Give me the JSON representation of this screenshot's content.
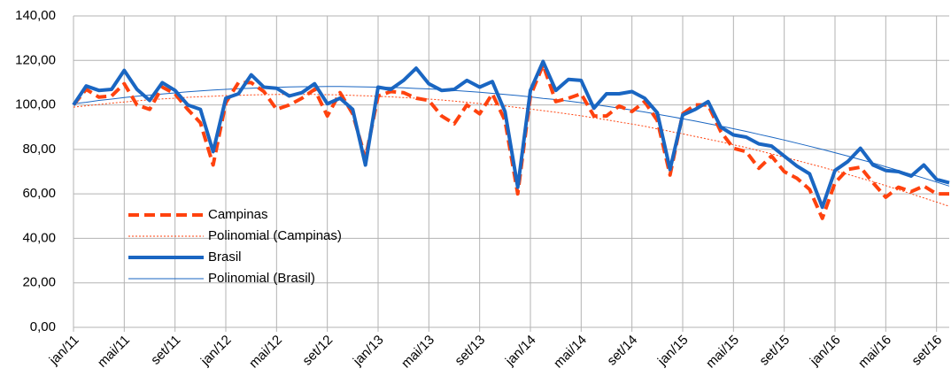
{
  "chart_data": {
    "type": "line",
    "categories": [
      "jan/11",
      null,
      null,
      null,
      "mai/11",
      null,
      null,
      null,
      "set/11",
      null,
      null,
      null,
      "jan/12",
      null,
      null,
      null,
      "mai/12",
      null,
      null,
      null,
      "set/12",
      null,
      null,
      null,
      "jan/13",
      null,
      null,
      null,
      "mai/13",
      null,
      null,
      null,
      "set/13",
      null,
      null,
      null,
      "jan/14",
      null,
      null,
      null,
      "mai/14",
      null,
      null,
      null,
      "set/14",
      null,
      null,
      null,
      "jan/15",
      null,
      null,
      null,
      "mai/15",
      null,
      null,
      null,
      "set/15",
      null,
      null,
      null,
      "jan/16",
      null,
      null,
      null,
      "mai/16",
      null,
      null,
      null,
      "set/16",
      null
    ],
    "series": [
      {
        "name": "Campinas",
        "color": "#ff420e",
        "style": "dashed",
        "width": 4,
        "values": [
          100,
          107,
          103.5,
          104,
          109.5,
          100,
          98,
          108,
          105,
          98,
          92,
          73,
          101,
          110,
          110,
          106,
          98,
          100,
          103,
          107,
          95,
          105.5,
          96,
          76,
          104,
          106,
          105.5,
          103,
          102,
          95,
          91.5,
          100,
          96,
          105,
          93,
          60,
          104,
          118,
          101.5,
          103,
          105,
          95,
          95,
          99.5,
          97,
          101.5,
          93,
          68.5,
          96,
          100,
          100,
          88,
          80.5,
          79,
          71.5,
          77,
          70,
          67,
          62,
          49,
          65,
          71,
          72,
          65,
          58.5,
          63,
          61,
          63.5,
          60,
          60
        ]
      },
      {
        "name": "Polinomial (Campinas)",
        "color": "#ff420e",
        "style": "dotted",
        "width": 1,
        "values": [
          99.0,
          99.6,
          100.2,
          100.8,
          101.3,
          101.8,
          102.3,
          102.7,
          103.0,
          103.4,
          103.7,
          103.9,
          104.2,
          104.3,
          104.5,
          104.6,
          104.7,
          104.7,
          104.7,
          104.7,
          104.6,
          104.5,
          104.3,
          104.1,
          103.9,
          103.6,
          103.3,
          103.0,
          102.6,
          102.2,
          101.7,
          101.2,
          100.6,
          100.1,
          99.5,
          98.8,
          98.1,
          97.4,
          96.7,
          95.9,
          95.1,
          94.2,
          93.3,
          92.3,
          91.4,
          90.4,
          89.2,
          88.1,
          87.0,
          85.8,
          84.6,
          83.4,
          82.1,
          80.8,
          79.4,
          78.0,
          76.5,
          75.0,
          73.5,
          72.0,
          70.4,
          68.8,
          67.1,
          65.5,
          63.7,
          61.9,
          60.0,
          58.2,
          56.3,
          54.4
        ]
      },
      {
        "name": "Brasil",
        "color": "#1a66c2",
        "style": "solid",
        "width": 4,
        "values": [
          100,
          108.5,
          106.5,
          107,
          115.5,
          107,
          102,
          110,
          106.5,
          100,
          98,
          79,
          103,
          105,
          113.5,
          108,
          107.5,
          104,
          105.5,
          109.5,
          100.5,
          103,
          98,
          73,
          108,
          107,
          111,
          116.5,
          109.5,
          106.5,
          107,
          111,
          108,
          110.5,
          97,
          63,
          106.5,
          119.5,
          106.5,
          111.5,
          111,
          98.5,
          105,
          105,
          106,
          103,
          96.5,
          71,
          95.5,
          98,
          101.5,
          90,
          86.5,
          85.5,
          82.5,
          81.5,
          77,
          72.5,
          69,
          54,
          70.5,
          74.5,
          80.5,
          73,
          70.5,
          70,
          68,
          73,
          66.5,
          65
        ]
      },
      {
        "name": "Polinomial (Brasil)",
        "color": "#1a66c2",
        "style": "solid",
        "width": 1,
        "values": [
          100.5,
          101.2,
          102.0,
          102.6,
          103.3,
          103.9,
          104.4,
          104.9,
          105.4,
          105.9,
          106.3,
          106.7,
          107.0,
          107.3,
          107.5,
          107.8,
          107.9,
          108.1,
          108.2,
          108.2,
          108.3,
          108.3,
          108.2,
          108.1,
          108.0,
          107.9,
          107.7,
          107.4,
          107.2,
          106.9,
          106.5,
          106.1,
          105.7,
          105.2,
          104.7,
          104.2,
          103.6,
          102.9,
          102.4,
          101.7,
          101.0,
          100.2,
          99.4,
          98.5,
          97.7,
          96.8,
          95.8,
          94.8,
          93.8,
          92.7,
          91.6,
          90.5,
          89.3,
          88.1,
          86.8,
          85.5,
          84.2,
          82.8,
          81.4,
          80.0,
          78.5,
          77.0,
          75.4,
          73.9,
          72.2,
          70.5,
          68.8,
          67.1,
          65.3,
          63.5
        ]
      }
    ],
    "ylim": [
      0,
      140
    ],
    "yticks": [
      {
        "value": 0,
        "label": "0,00"
      },
      {
        "value": 20,
        "label": "20,00"
      },
      {
        "value": 40,
        "label": "40,00"
      },
      {
        "value": 60,
        "label": "60,00"
      },
      {
        "value": 80,
        "label": "80,00"
      },
      {
        "value": 100,
        "label": "100,00"
      },
      {
        "value": 120,
        "label": "120,00"
      },
      {
        "value": 140,
        "label": "140,00"
      }
    ],
    "grid": true,
    "legend": "bottom-left"
  }
}
